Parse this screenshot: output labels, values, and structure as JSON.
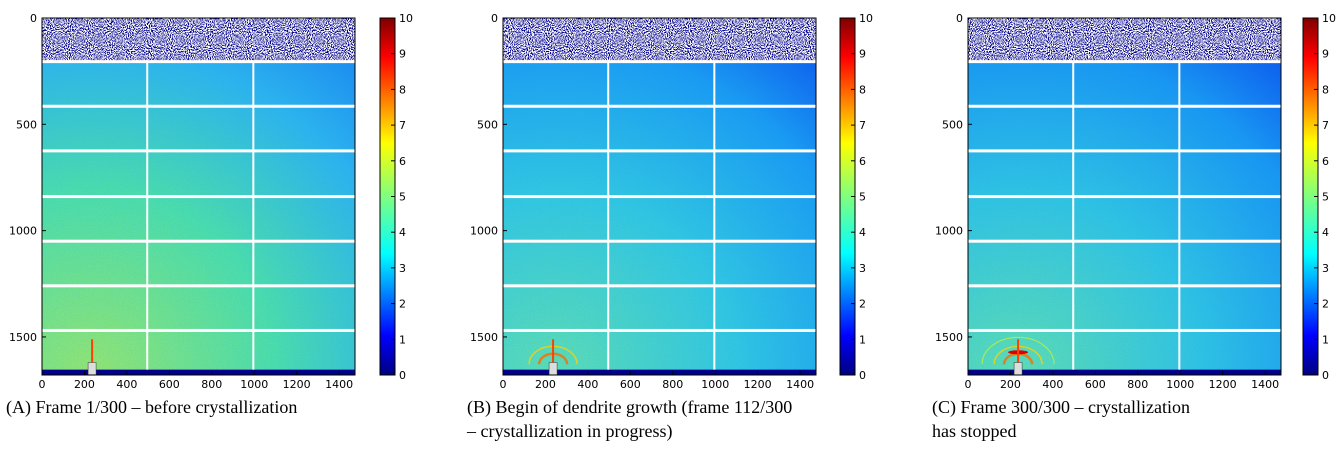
{
  "chart_data": [
    {
      "type": "image",
      "caption": [
        "(A) Frame 1/300 – before crystallization"
      ],
      "xlim": [
        0,
        1475
      ],
      "xticks": [
        0,
        200,
        400,
        600,
        800,
        1000,
        1200,
        1400
      ],
      "ylim": [
        0,
        1679
      ],
      "yticks": [
        0,
        500,
        1000,
        1500
      ],
      "clim": [
        0,
        10
      ],
      "cticks": [
        0,
        1,
        2,
        3,
        4,
        5,
        6,
        7,
        8,
        9,
        10
      ],
      "colormap": "jet"
    },
    {
      "type": "image",
      "caption": [
        "(B) Begin of dendrite growth (frame 112/300",
        "– crystallization in progress)"
      ],
      "xlim": [
        0,
        1475
      ],
      "xticks": [
        0,
        200,
        400,
        600,
        800,
        1000,
        1200,
        1400
      ],
      "ylim": [
        0,
        1679
      ],
      "yticks": [
        0,
        500,
        1000,
        1500
      ],
      "clim": [
        0,
        10
      ],
      "cticks": [
        0,
        1,
        2,
        3,
        4,
        5,
        6,
        7,
        8,
        9,
        10
      ],
      "colormap": "jet"
    },
    {
      "type": "image",
      "caption": [
        "(C) Frame 300/300 – crystallization",
        "has stopped"
      ],
      "xlim": [
        0,
        1475
      ],
      "xticks": [
        0,
        200,
        400,
        600,
        800,
        1000,
        1200,
        1400
      ],
      "ylim": [
        0,
        1679
      ],
      "yticks": [
        0,
        500,
        1000,
        1500
      ],
      "clim": [
        0,
        10
      ],
      "cticks": [
        0,
        1,
        2,
        3,
        4,
        5,
        6,
        7,
        8,
        9,
        10
      ],
      "colormap": "jet"
    }
  ]
}
